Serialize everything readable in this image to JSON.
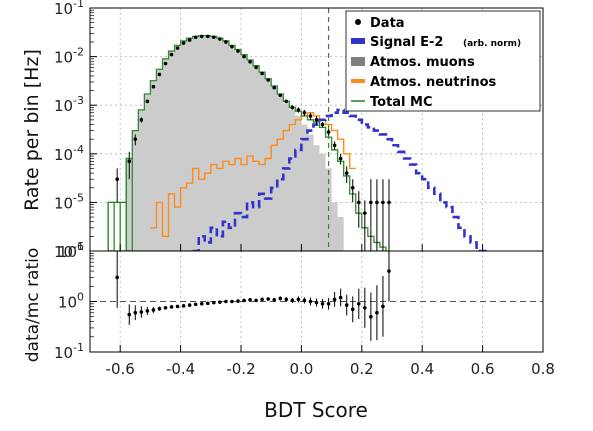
{
  "chart_data": [
    {
      "type": "line",
      "panel": "main",
      "ylabel": "Rate per bin [Hz]",
      "yscale": "log",
      "ylim": [
        1e-06,
        0.1
      ],
      "xlim": [
        -0.7,
        0.8
      ],
      "ytick_labels": [
        "10^-1",
        "10^-2",
        "10^-3",
        "10^-4",
        "10^-5",
        "10^-6"
      ],
      "grid": true,
      "legend_position": "top-right",
      "cut_line_x": 0.09,
      "legend": [
        {
          "label": "Data",
          "note": "",
          "color": "#000000",
          "style": "point"
        },
        {
          "label": "Signal E-2",
          "note": "(arb. norm)",
          "color": "#3333cc",
          "style": "dashed"
        },
        {
          "label": "Atmos. muons",
          "note": "",
          "color": "#808080",
          "style": "fill"
        },
        {
          "label": "Atmos. neutrinos",
          "note": "",
          "color": "#ff8c1a",
          "style": "line"
        },
        {
          "label": "Total MC",
          "note": "",
          "color": "#2e8b2e",
          "style": "line"
        }
      ],
      "series": [
        {
          "name": "Total MC",
          "kind": "step",
          "x": [
            -0.64,
            -0.6,
            -0.58,
            -0.56,
            -0.54,
            -0.52,
            -0.5,
            -0.48,
            -0.46,
            -0.44,
            -0.42,
            -0.4,
            -0.38,
            -0.36,
            -0.34,
            -0.32,
            -0.3,
            -0.28,
            -0.26,
            -0.24,
            -0.22,
            -0.2,
            -0.18,
            -0.16,
            -0.14,
            -0.12,
            -0.1,
            -0.08,
            -0.06,
            -0.04,
            -0.02,
            0.0,
            0.02,
            0.04,
            0.06,
            0.08,
            0.1,
            0.12,
            0.14,
            0.16,
            0.18,
            0.2,
            0.22,
            0.24,
            0.26
          ],
          "y": [
            1e-05,
            1e-05,
            8e-05,
            0.0003,
            0.0008,
            0.0017,
            0.0032,
            0.0055,
            0.009,
            0.013,
            0.017,
            0.021,
            0.024,
            0.026,
            0.027,
            0.027,
            0.026,
            0.024,
            0.021,
            0.017,
            0.014,
            0.011,
            0.0085,
            0.0065,
            0.0048,
            0.0035,
            0.0025,
            0.0017,
            0.0012,
            0.0009,
            0.00075,
            0.0006,
            0.0005,
            0.00045,
            0.00035,
            0.00022,
            0.00012,
            7e-05,
            3.5e-05,
            1.5e-05,
            6e-06,
            3e-06,
            2e-06,
            1.5e-06,
            1.2e-06
          ]
        },
        {
          "name": "Atmos. muons",
          "kind": "filled-step",
          "x": [
            -0.58,
            -0.56,
            -0.54,
            -0.52,
            -0.5,
            -0.48,
            -0.46,
            -0.44,
            -0.42,
            -0.4,
            -0.38,
            -0.36,
            -0.34,
            -0.32,
            -0.3,
            -0.28,
            -0.26,
            -0.24,
            -0.22,
            -0.2,
            -0.18,
            -0.16,
            -0.14,
            -0.12,
            -0.1,
            -0.08,
            -0.06,
            -0.04,
            -0.02,
            0.0,
            0.02,
            0.04,
            0.06,
            0.08,
            0.1,
            0.12
          ],
          "y": [
            8e-05,
            0.0003,
            0.0008,
            0.0017,
            0.0032,
            0.0055,
            0.009,
            0.013,
            0.017,
            0.021,
            0.024,
            0.026,
            0.027,
            0.027,
            0.026,
            0.024,
            0.021,
            0.017,
            0.014,
            0.011,
            0.0085,
            0.0065,
            0.0048,
            0.0035,
            0.0025,
            0.0016,
            0.0011,
            0.0008,
            0.0006,
            0.0004,
            0.00025,
            0.00015,
            0.0001,
            5e-05,
            1e-05,
            5e-06
          ]
        },
        {
          "name": "Atmos. neutrinos",
          "kind": "step",
          "x": [
            -0.5,
            -0.48,
            -0.46,
            -0.44,
            -0.42,
            -0.4,
            -0.38,
            -0.36,
            -0.34,
            -0.32,
            -0.3,
            -0.28,
            -0.26,
            -0.24,
            -0.22,
            -0.2,
            -0.18,
            -0.16,
            -0.14,
            -0.12,
            -0.1,
            -0.08,
            -0.06,
            -0.04,
            -0.02,
            0.0,
            0.02,
            0.04,
            0.06,
            0.08,
            0.1,
            0.12,
            0.14,
            0.16
          ],
          "y": [
            3e-06,
            1e-05,
            2e-06,
            1.5e-05,
            8e-06,
            2e-05,
            2.5e-05,
            5e-05,
            3e-05,
            4e-05,
            6e-05,
            5e-05,
            7e-05,
            6e-05,
            8e-05,
            6e-05,
            9e-05,
            7e-05,
            6e-05,
            8e-05,
            0.00015,
            0.0002,
            0.0003,
            0.0004,
            0.0005,
            0.0006,
            0.0007,
            0.0006,
            0.0005,
            0.0004,
            0.0003,
            0.0002,
            0.0001,
            5e-05
          ]
        },
        {
          "name": "Signal E-2",
          "kind": "dashed-step",
          "x": [
            -0.36,
            -0.34,
            -0.32,
            -0.3,
            -0.28,
            -0.26,
            -0.24,
            -0.22,
            -0.2,
            -0.18,
            -0.16,
            -0.14,
            -0.12,
            -0.1,
            -0.08,
            -0.06,
            -0.04,
            -0.02,
            0.0,
            0.02,
            0.04,
            0.06,
            0.08,
            0.1,
            0.12,
            0.14,
            0.16,
            0.18,
            0.2,
            0.22,
            0.24,
            0.26,
            0.28,
            0.3,
            0.32,
            0.34,
            0.36,
            0.38,
            0.4,
            0.42,
            0.44,
            0.46,
            0.48,
            0.5,
            0.52,
            0.54,
            0.56,
            0.58,
            0.6
          ],
          "y": [
            1e-06,
            2e-06,
            1.5e-06,
            3e-06,
            2e-06,
            4e-06,
            3e-06,
            6e-06,
            5e-06,
            1e-05,
            8e-06,
            1.5e-05,
            1.2e-05,
            2e-05,
            3e-05,
            5e-05,
            8e-05,
            0.00012,
            0.0002,
            0.0003,
            0.0004,
            0.0005,
            0.0006,
            0.0007,
            0.0008,
            0.0007,
            0.0006,
            0.0005,
            0.0004,
            0.00035,
            0.0003,
            0.00025,
            0.0002,
            0.00015,
            0.00011,
            8e-05,
            6e-05,
            4e-05,
            3e-05,
            2e-05,
            1.5e-05,
            1e-05,
            8e-06,
            5e-06,
            3e-06,
            2e-06,
            1.5e-06,
            1e-06,
            1e-06
          ]
        },
        {
          "name": "Data",
          "kind": "points",
          "x": [
            -0.61,
            -0.57,
            -0.55,
            -0.53,
            -0.51,
            -0.49,
            -0.47,
            -0.45,
            -0.43,
            -0.41,
            -0.39,
            -0.37,
            -0.35,
            -0.33,
            -0.31,
            -0.29,
            -0.27,
            -0.25,
            -0.23,
            -0.21,
            -0.19,
            -0.17,
            -0.15,
            -0.13,
            -0.11,
            -0.09,
            -0.07,
            -0.05,
            -0.03,
            -0.01,
            0.01,
            0.03,
            0.05,
            0.07,
            0.09,
            0.11,
            0.13,
            0.15,
            0.17,
            0.19,
            0.21,
            0.23,
            0.25,
            0.27,
            0.29
          ],
          "y": [
            3e-05,
            7e-05,
            0.0002,
            0.0005,
            0.0012,
            0.0024,
            0.0043,
            0.0072,
            0.011,
            0.015,
            0.019,
            0.022,
            0.025,
            0.026,
            0.026,
            0.025,
            0.023,
            0.02,
            0.016,
            0.013,
            0.01,
            0.0078,
            0.006,
            0.0045,
            0.0033,
            0.0023,
            0.0016,
            0.0012,
            0.0009,
            0.0008,
            0.0007,
            0.0006,
            0.0005,
            0.0004,
            0.00028,
            0.00015,
            8e-05,
            4e-05,
            2e-05,
            1e-05,
            6e-06,
            1e-05,
            1e-05,
            1e-05,
            1e-05
          ],
          "yerr_low": [
            2e-05,
            4e-05,
            5e-05,
            6e-05,
            0.0001,
            0.0001,
            0.0001,
            0.0001,
            0.0001,
            0.0001,
            0.0001,
            0.0001,
            0.0001,
            0.0001,
            0.0001,
            0.0001,
            0.0001,
            0.0001,
            0.0001,
            0.0001,
            0.0001,
            0.0001,
            0.0001,
            0.0001,
            0.0001,
            0.0001,
            0.0001,
            0.0001,
            0.0001,
            0.0001,
            0.0001,
            0.0001,
            0.0001,
            5e-05,
            4e-05,
            3e-05,
            2e-05,
            1.5e-05,
            1e-05,
            7e-06,
            5e-06,
            9e-06,
            9e-06,
            9e-06,
            9e-06
          ],
          "yerr_high": [
            2e-05,
            4e-05,
            5e-05,
            6e-05,
            0.0001,
            0.0001,
            0.0001,
            0.0001,
            0.0001,
            0.0001,
            0.0001,
            0.0001,
            0.0001,
            0.0001,
            0.0001,
            0.0001,
            0.0001,
            0.0001,
            0.0001,
            0.0001,
            0.0001,
            0.0001,
            0.0001,
            0.0001,
            0.0001,
            0.0001,
            0.0001,
            0.0001,
            0.0001,
            0.0001,
            0.0001,
            0.0001,
            0.0001,
            5e-05,
            4e-05,
            3e-05,
            2e-05,
            1.5e-05,
            1e-05,
            7e-06,
            5e-06,
            2e-05,
            2e-05,
            2e-05,
            2e-05
          ]
        }
      ]
    },
    {
      "type": "scatter",
      "panel": "ratio",
      "ylabel": "data/mc ratio",
      "xlabel": "BDT Score",
      "yscale": "log",
      "ylim": [
        0.1,
        10
      ],
      "xlim": [
        -0.7,
        0.8
      ],
      "xticks": [
        -0.6,
        -0.4,
        -0.2,
        0.0,
        0.2,
        0.4,
        0.6,
        0.8
      ],
      "xtick_labels": [
        "-0.6",
        "-0.4",
        "-0.2",
        "0.0",
        "0.2",
        "0.4",
        "0.6",
        "0.8"
      ],
      "ytick_labels": [
        "10^1",
        "10^0",
        "10^-1"
      ],
      "reference_line_y": 1.0,
      "points": {
        "x": [
          -0.61,
          -0.57,
          -0.55,
          -0.53,
          -0.51,
          -0.49,
          -0.47,
          -0.45,
          -0.43,
          -0.41,
          -0.39,
          -0.37,
          -0.35,
          -0.33,
          -0.31,
          -0.29,
          -0.27,
          -0.25,
          -0.23,
          -0.21,
          -0.19,
          -0.17,
          -0.15,
          -0.13,
          -0.11,
          -0.09,
          -0.07,
          -0.05,
          -0.03,
          -0.01,
          0.01,
          0.03,
          0.05,
          0.07,
          0.09,
          0.11,
          0.13,
          0.15,
          0.17,
          0.19,
          0.21,
          0.23,
          0.25,
          0.27,
          0.29
        ],
        "y": [
          3.0,
          0.55,
          0.6,
          0.62,
          0.65,
          0.68,
          0.72,
          0.75,
          0.78,
          0.8,
          0.82,
          0.85,
          0.88,
          0.9,
          0.92,
          0.95,
          0.97,
          1.0,
          1.0,
          1.02,
          1.05,
          1.08,
          1.05,
          1.1,
          1.12,
          1.08,
          1.15,
          1.1,
          1.05,
          1.1,
          1.05,
          1.0,
          0.95,
          0.9,
          0.9,
          1.1,
          1.2,
          0.85,
          0.7,
          0.9,
          0.75,
          0.5,
          0.6,
          0.8,
          4.0
        ],
        "err_factor": [
          4.0,
          1.6,
          1.4,
          1.3,
          1.2,
          1.15,
          1.1,
          1.08,
          1.06,
          1.05,
          1.05,
          1.04,
          1.04,
          1.04,
          1.04,
          1.04,
          1.04,
          1.04,
          1.04,
          1.05,
          1.05,
          1.06,
          1.06,
          1.08,
          1.08,
          1.1,
          1.1,
          1.12,
          1.12,
          1.15,
          1.15,
          1.2,
          1.2,
          1.25,
          1.3,
          1.4,
          1.5,
          1.6,
          1.8,
          2.0,
          2.5,
          3.0,
          3.5,
          4.0,
          4.0
        ]
      }
    }
  ]
}
